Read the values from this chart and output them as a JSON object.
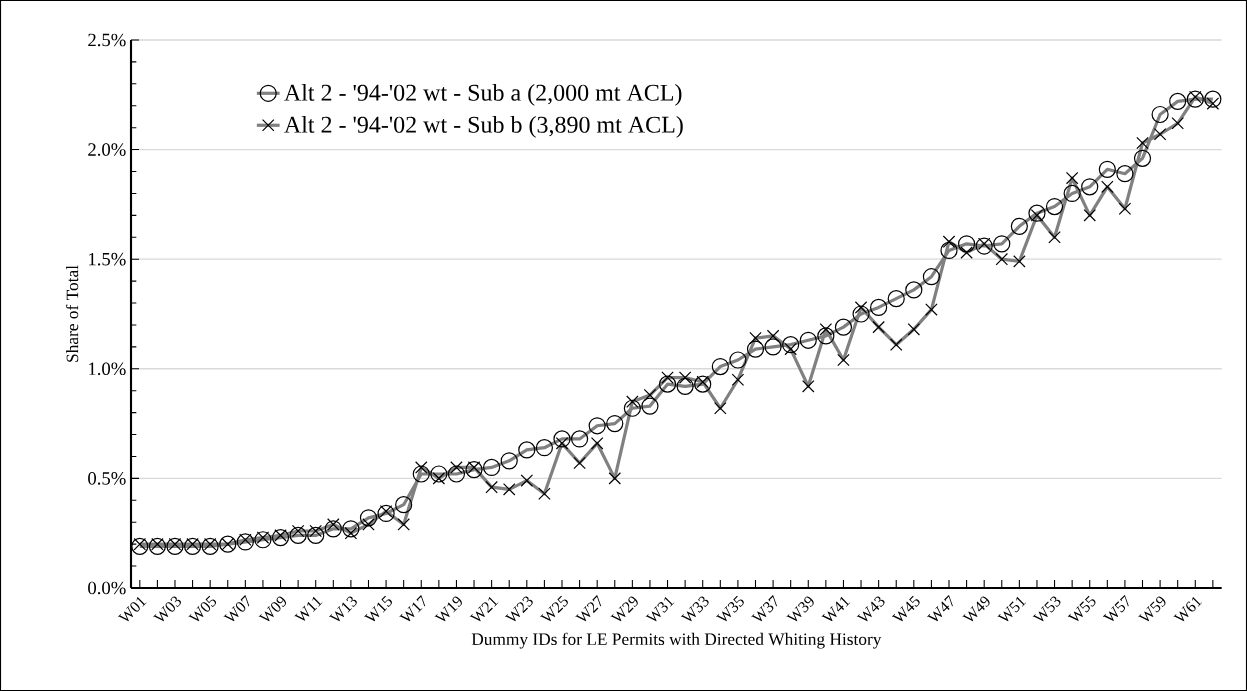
{
  "chart_data": {
    "type": "line",
    "xlabel": "Dummy IDs for LE Permits with Directed Whiting History",
    "ylabel": "Share of Total",
    "categories": [
      "W01",
      null,
      "W03",
      null,
      "W05",
      null,
      "W07",
      null,
      "W09",
      null,
      "W11",
      null,
      "W13",
      null,
      "W15",
      null,
      "W17",
      null,
      "W19",
      null,
      "W21",
      null,
      "W23",
      null,
      "W25",
      null,
      "W27",
      null,
      "W29",
      null,
      "W31",
      null,
      "W33",
      null,
      "W35",
      null,
      "W37",
      null,
      "W39",
      null,
      "W41",
      null,
      "W43",
      null,
      "W45",
      null,
      "W47",
      null,
      "W49",
      null,
      "W51",
      null,
      "W53",
      null,
      "W55",
      null,
      "W57",
      null,
      "W59",
      null,
      "W61",
      null
    ],
    "series": [
      {
        "name": "Alt 2 - '94-'02 wt - Sub a (2,000 mt ACL)",
        "color": "#808080",
        "marker": "circle",
        "values": [
          0.19,
          0.19,
          0.19,
          0.19,
          0.19,
          0.2,
          0.21,
          0.22,
          0.23,
          0.24,
          0.24,
          0.27,
          0.27,
          0.32,
          0.34,
          0.38,
          0.52,
          0.52,
          0.52,
          0.54,
          0.55,
          0.58,
          0.63,
          0.64,
          0.68,
          0.68,
          0.74,
          0.75,
          0.82,
          0.83,
          0.93,
          0.92,
          0.93,
          1.01,
          1.04,
          1.09,
          1.1,
          1.11,
          1.13,
          1.15,
          1.19,
          1.25,
          1.28,
          1.32,
          1.36,
          1.42,
          1.54,
          1.57,
          1.56,
          1.57,
          1.65,
          1.71,
          1.74,
          1.8,
          1.83,
          1.91,
          1.89,
          1.96,
          2.16,
          2.22,
          2.23,
          2.23
        ]
      },
      {
        "name": "Alt 2 - '94-'02 wt - Sub b (3,890 mt ACL)",
        "color": "#808080",
        "marker": "cross",
        "values": [
          0.2,
          0.2,
          0.2,
          0.2,
          0.2,
          0.2,
          0.22,
          0.23,
          0.24,
          0.26,
          0.26,
          0.29,
          0.25,
          0.29,
          0.35,
          0.29,
          0.55,
          0.5,
          0.55,
          0.55,
          0.46,
          0.45,
          0.49,
          0.43,
          0.66,
          0.57,
          0.66,
          0.5,
          0.85,
          0.88,
          0.96,
          0.96,
          0.94,
          0.82,
          0.95,
          1.14,
          1.15,
          1.09,
          0.92,
          1.18,
          1.04,
          1.28,
          1.19,
          1.11,
          1.18,
          1.27,
          1.58,
          1.53,
          1.57,
          1.5,
          1.49,
          1.7,
          1.6,
          1.87,
          1.7,
          1.83,
          1.73,
          2.03,
          2.07,
          2.12,
          2.24,
          2.21
        ]
      }
    ],
    "ylim": [
      0,
      2.5
    ],
    "yticks": [
      {
        "value": 0,
        "label": "0.0%"
      },
      {
        "value": 0.5,
        "label": "0.5%"
      },
      {
        "value": 1.0,
        "label": "1.0%"
      },
      {
        "value": 1.5,
        "label": "1.5%"
      },
      {
        "value": 2.0,
        "label": "2.0%"
      },
      {
        "value": 2.5,
        "label": "2.5%"
      }
    ],
    "grid": "y",
    "legend": "top left",
    "line_style": "solid"
  }
}
